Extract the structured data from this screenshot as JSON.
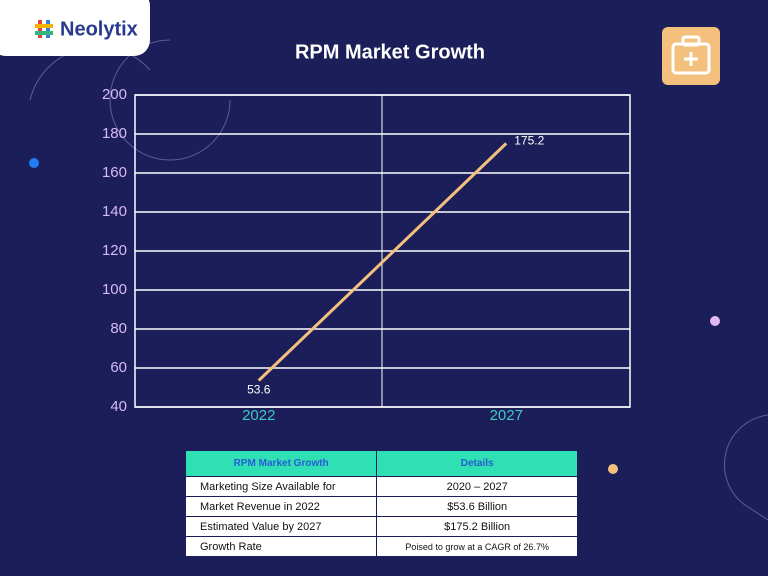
{
  "brand": "Neolytix",
  "chart_data": {
    "type": "line",
    "title": "RPM Market Growth",
    "categories": [
      "2022",
      "2027"
    ],
    "series": [
      {
        "values": [
          53.6,
          175.2
        ],
        "color": "#f4c07e"
      }
    ],
    "ylim": [
      40,
      200
    ],
    "yticks": [
      40,
      60,
      80,
      100,
      120,
      140,
      160,
      180,
      200
    ],
    "grid": true
  },
  "table": {
    "header": [
      "RPM Market Growth",
      "Details"
    ],
    "rows": [
      [
        "Marketing Size Available for",
        "2020 – 2027"
      ],
      [
        "Market Revenue in 2022",
        "$53.6 Billion"
      ],
      [
        "Estimated Value by 2027",
        "$175.2 Billion"
      ],
      [
        "Growth Rate",
        "Poised to grow at a CAGR of 26.7%"
      ]
    ]
  }
}
